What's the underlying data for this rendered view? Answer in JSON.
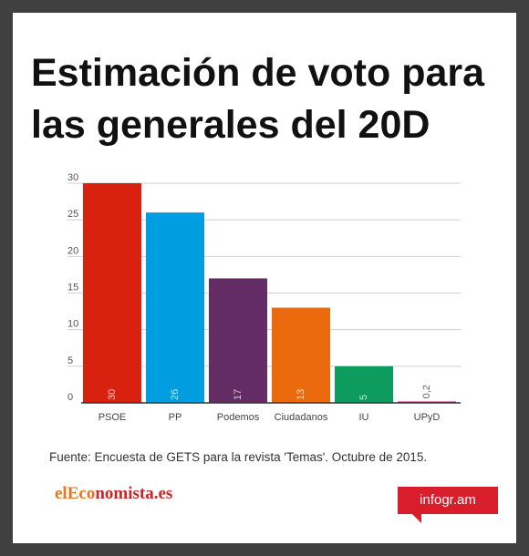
{
  "title": "Estimación de voto para las generales del 20D",
  "source": "Fuente: Encuesta de GETS para la revista 'Temas'.  Octubre de 2015.",
  "brand": {
    "part1": "elEco",
    "part2": "nomista.es"
  },
  "badge": "infogr.am",
  "colors": {
    "PSOE": "#d8220f",
    "PP": "#009ee0",
    "Podemos": "#632c64",
    "Ciudadanos": "#eb6a0e",
    "IU": "#0e9b5e",
    "UPyD": "#c8378c"
  },
  "chart_data": {
    "type": "bar",
    "categories": [
      "PSOE",
      "PP",
      "Podemos",
      "Ciudadanos",
      "IU",
      "UPyD"
    ],
    "values": [
      30,
      26,
      17,
      13,
      5,
      0.2
    ],
    "value_labels": [
      "30",
      "26",
      "17",
      "13",
      "5",
      "0,2"
    ],
    "y_ticks": [
      "0",
      "5",
      "10",
      "15",
      "20",
      "25",
      "30"
    ],
    "ylim": [
      0,
      30
    ],
    "grid": true
  }
}
